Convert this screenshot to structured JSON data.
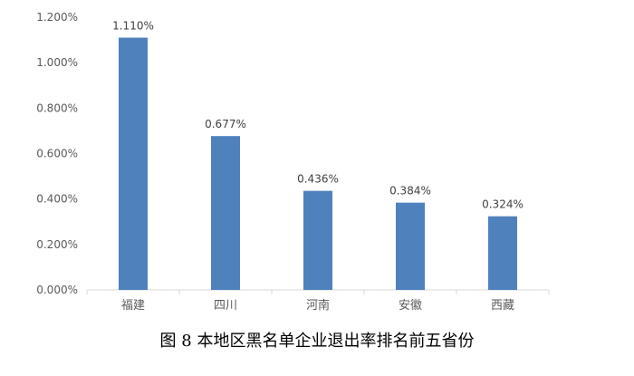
{
  "chart_data": {
    "type": "bar",
    "caption": "图 8  本地区黑名单企业退出率排名前五省份",
    "categories": [
      "福建",
      "四川",
      "河南",
      "安徽",
      "西藏"
    ],
    "values": [
      1.11,
      0.677,
      0.436,
      0.384,
      0.324
    ],
    "value_labels": [
      "1.110%",
      "0.677%",
      "0.436%",
      "0.384%",
      "0.324%"
    ],
    "unit": "%",
    "ylim": [
      0,
      1.2
    ],
    "yticks": [
      0,
      0.2,
      0.4,
      0.6,
      0.8,
      1.0,
      1.2
    ],
    "ytick_labels": [
      "0.000%",
      "0.200%",
      "0.400%",
      "0.600%",
      "0.800%",
      "1.000%",
      "1.200%"
    ],
    "grid": false,
    "legend": "none",
    "colors": {
      "bar": "#4f81bd",
      "axis": "#d9d9d9"
    }
  }
}
